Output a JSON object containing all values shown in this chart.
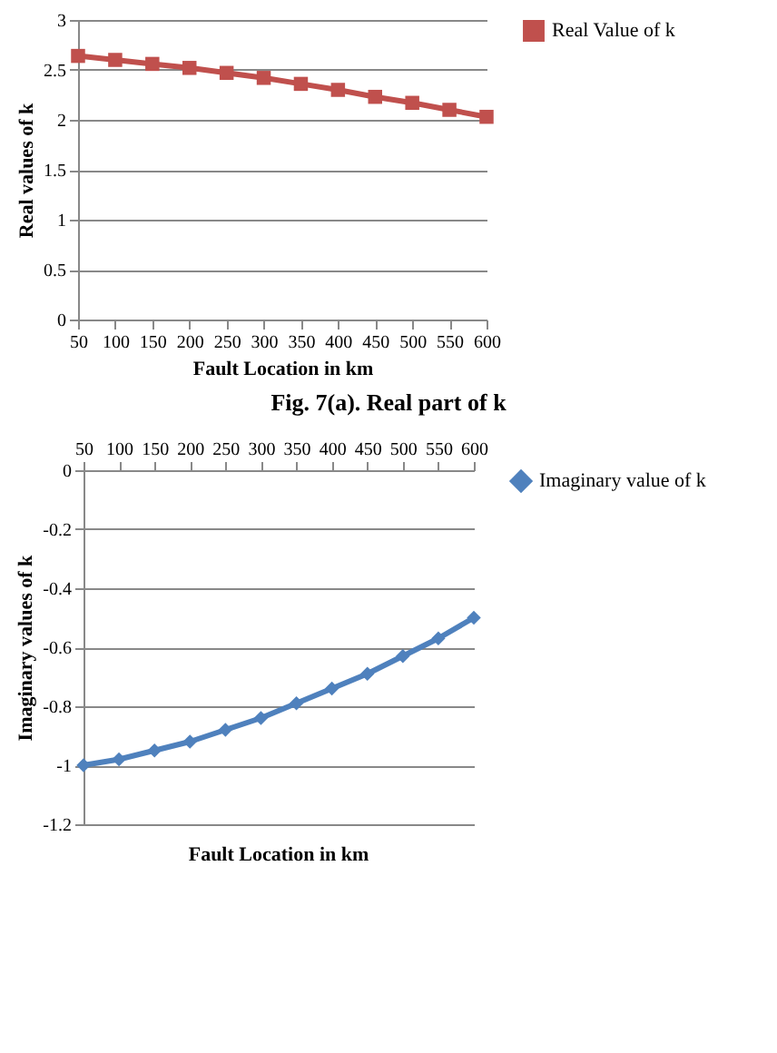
{
  "chart_data": [
    {
      "type": "line",
      "xlabel": "Fault Location in km",
      "ylabel": "Real  values of k",
      "categories": [
        "50",
        "100",
        "150",
        "200",
        "250",
        "300",
        "350",
        "400",
        "450",
        "500",
        "550",
        "600"
      ],
      "series": [
        {
          "name": "Real Value of k",
          "color": "#c0504d",
          "values": [
            2.64,
            2.6,
            2.56,
            2.52,
            2.47,
            2.42,
            2.36,
            2.3,
            2.23,
            2.17,
            2.1,
            2.03
          ]
        }
      ],
      "ylim": [
        0,
        3
      ],
      "yticks": [
        0,
        0.5,
        1,
        1.5,
        2,
        2.5,
        3
      ],
      "grid": "y",
      "legend": "right",
      "marker": "square",
      "annotations": [
        "Fig. 7(a). Real part of k"
      ]
    },
    {
      "type": "line",
      "xlabel": "Fault Location in km",
      "ylabel": "Imaginary values of k",
      "categories": [
        "50",
        "100",
        "150",
        "200",
        "250",
        "300",
        "350",
        "400",
        "450",
        "500",
        "550",
        "600"
      ],
      "series": [
        {
          "name": "Imaginary value of k",
          "color": "#4f81bd",
          "values": [
            -1.0,
            -0.98,
            -0.95,
            -0.92,
            -0.88,
            -0.84,
            -0.79,
            -0.74,
            -0.69,
            -0.63,
            -0.57,
            -0.5
          ]
        }
      ],
      "ylim": [
        -1.2,
        0
      ],
      "yticks": [
        -1.2,
        -1,
        -0.8,
        -0.6,
        -0.4,
        -0.2,
        0
      ],
      "grid": "y",
      "legend": "right",
      "marker": "diamond"
    }
  ]
}
